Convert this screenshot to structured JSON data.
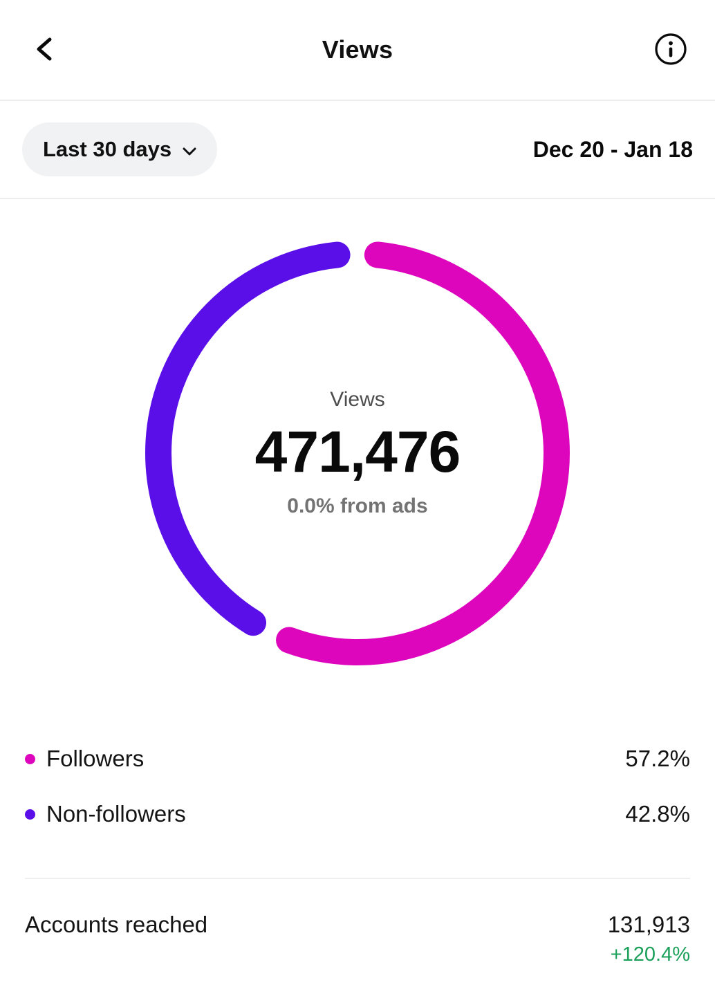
{
  "header": {
    "title": "Views"
  },
  "filter": {
    "range_label": "Last 30 days",
    "date_range": "Dec 20 - Jan 18"
  },
  "chart_data": {
    "type": "donut",
    "title": "Views",
    "center_label": "Views",
    "center_value": "471,476",
    "center_subtext": "0.0% from ads",
    "unit": "%",
    "start_angle_deg": -90,
    "segments": [
      {
        "label": "Followers",
        "value": 57.2,
        "color": "#dd06bd"
      },
      {
        "label": "Non-followers",
        "value": 42.8,
        "color": "#5a0fe8"
      }
    ]
  },
  "legend": {
    "items": [
      {
        "label": "Followers",
        "percent": "57.2%",
        "color": "#dd06bd"
      },
      {
        "label": "Non-followers",
        "percent": "42.8%",
        "color": "#5a0fe8"
      }
    ]
  },
  "accounts": {
    "label": "Accounts reached",
    "value": "131,913",
    "delta": "+120.4%",
    "delta_color": "#1ba05a"
  }
}
